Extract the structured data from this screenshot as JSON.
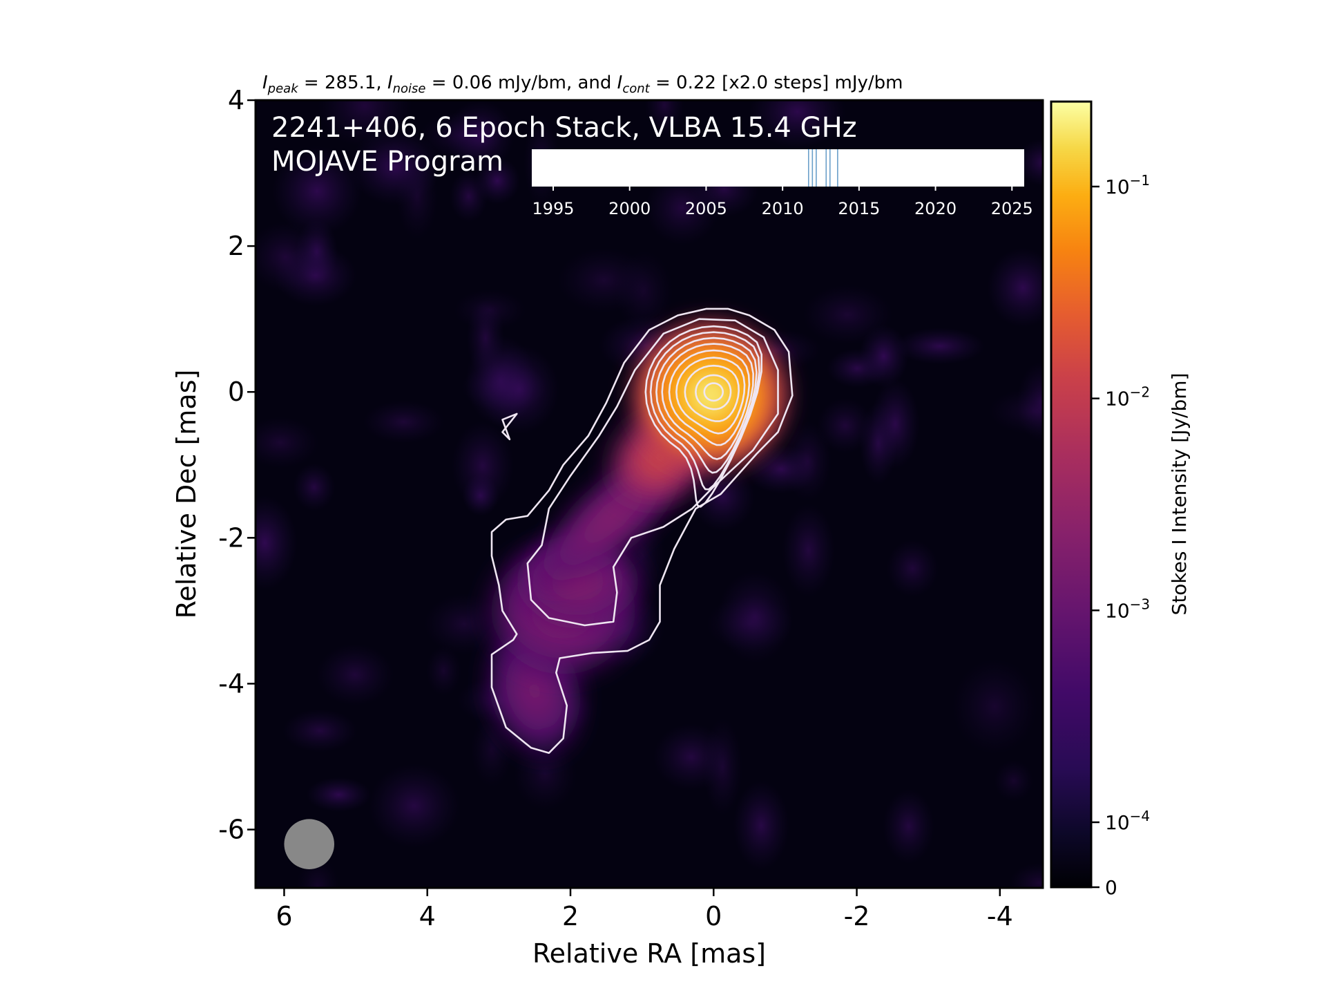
{
  "chart_data": {
    "type": "heatmap",
    "header": {
      "peak_label": "peak",
      "peak_value": "285.1,",
      "noise_label": "noise",
      "noise_value": "0.06 mJy/bm, and",
      "cont_label": "cont",
      "cont_value": "0.22 [x2.0 steps] mJy/bm"
    },
    "title_line1": "2241+406, 6 Epoch Stack, VLBA 15.4 GHz",
    "title_line2": "MOJAVE Program",
    "xlabel": "Relative RA [mas]",
    "ylabel": "Relative Dec [mas]",
    "xlim": [
      6.4,
      -4.6
    ],
    "ylim": [
      -6.8,
      4.0
    ],
    "x_ticks": [
      "6",
      "4",
      "2",
      "0",
      "-2",
      "-4"
    ],
    "x_tick_values": [
      6,
      4,
      2,
      0,
      -2,
      -4
    ],
    "y_ticks": [
      "4",
      "2",
      "0",
      "-2",
      "-4",
      "-6"
    ],
    "y_tick_values": [
      4,
      2,
      0,
      -2,
      -4,
      -6
    ],
    "colorbar": {
      "label": "Stokes I Intensity [Jy/bm]",
      "scale": "log",
      "ticks": [
        {
          "value": 0.1,
          "base": "10",
          "exp": "−1"
        },
        {
          "value": 0.01,
          "base": "10",
          "exp": "−2"
        },
        {
          "value": 0.001,
          "base": "10",
          "exp": "−3"
        },
        {
          "value": 0.0001,
          "base": "10",
          "exp": "−4"
        },
        {
          "value": 0,
          "base": "0",
          "exp": ""
        }
      ],
      "colormap": "inferno"
    },
    "timeline": {
      "ticks": [
        "1995",
        "2000",
        "2005",
        "2010",
        "2015",
        "2020",
        "2025"
      ],
      "tick_years": [
        1995,
        2000,
        2005,
        2010,
        2015,
        2020,
        2025
      ],
      "xlim": [
        1993.6,
        2025.8
      ],
      "epochs": [
        2011.7,
        2011.95,
        2012.2,
        2012.85,
        2013.1,
        2013.6
      ],
      "epoch_color": "#6a9fc9"
    },
    "peak_position": [
      0.0,
      0.0
    ],
    "contour_levels_mJy_per_bm": [
      0.22,
      0.44,
      0.88,
      1.76,
      3.52,
      7.04,
      14.08,
      28.16,
      56.32,
      112.64,
      225.28
    ],
    "beam": {
      "center_mas": [
        5.65,
        -6.2
      ],
      "diameter_mas": 0.7,
      "color": "#888888"
    },
    "components_mas": [
      {
        "x": 0.0,
        "y": 0.0,
        "peak_jy": 0.285
      },
      {
        "x": 0.8,
        "y": -1.1,
        "peak_jy": 0.008
      },
      {
        "x": 1.9,
        "y": -2.55,
        "peak_jy": 0.0011
      },
      {
        "x": 2.55,
        "y": -4.2,
        "peak_jy": 0.0005
      }
    ]
  }
}
